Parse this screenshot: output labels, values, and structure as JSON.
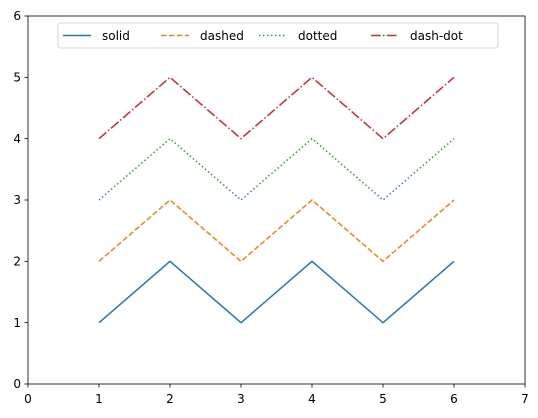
{
  "chart_data": {
    "type": "line",
    "title": "",
    "xlabel": "",
    "ylabel": "",
    "x": [
      1,
      2,
      3,
      4,
      5,
      6
    ],
    "xlim": [
      0,
      7
    ],
    "ylim": [
      0,
      6
    ],
    "xticks": [
      0,
      1,
      2,
      3,
      4,
      5,
      6,
      7
    ],
    "yticks": [
      0,
      1,
      2,
      3,
      4,
      5,
      6
    ],
    "xtick_labels": [
      "0",
      "1",
      "2",
      "3",
      "4",
      "5",
      "6",
      "7"
    ],
    "ytick_labels": [
      "0",
      "1",
      "2",
      "3",
      "4",
      "5",
      "6"
    ],
    "grid": false,
    "legend_position": "top-center",
    "series": [
      {
        "name": "solid",
        "linestyle": "solid",
        "color": "#1f77b4",
        "values": [
          1,
          2,
          1,
          2,
          1,
          2
        ]
      },
      {
        "name": "dashed",
        "linestyle": "dashed",
        "color": "#ff7f0e",
        "values": [
          2,
          3,
          2,
          3,
          2,
          3
        ]
      },
      {
        "name": "dotted",
        "linestyle": "dotted",
        "color": "#2ca02c",
        "values": [
          3,
          4,
          3,
          4,
          3,
          4
        ]
      },
      {
        "name": "dash-dot",
        "linestyle": "dash-dot",
        "color": "#d62728",
        "values": [
          4,
          5,
          4,
          5,
          4,
          5
        ]
      }
    ]
  }
}
